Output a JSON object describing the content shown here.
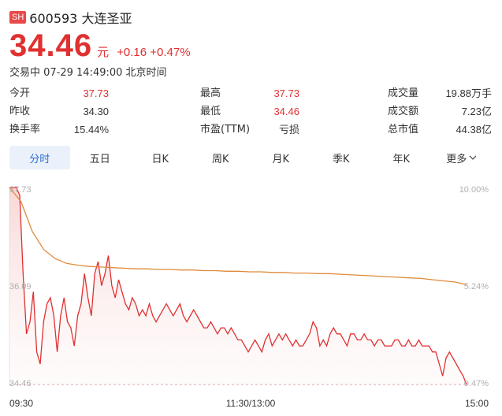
{
  "header": {
    "badge": "SH",
    "title": "600593 大连圣亚",
    "price": "34.46",
    "unit": "元",
    "change": "+0.16 +0.47%",
    "status": "交易中 07-29 14:49:00 北京时间"
  },
  "stats": {
    "open_label": "今开",
    "open": "37.73",
    "prev_close_label": "昨收",
    "prev_close": "34.30",
    "turnover_label": "换手率",
    "turnover": "15.44%",
    "high_label": "最高",
    "high": "37.73",
    "low_label": "最低",
    "low": "34.46",
    "pe_label": "市盈(TTM)",
    "pe": "亏损",
    "volume_label": "成交量",
    "volume": "19.88万手",
    "amount_label": "成交额",
    "amount": "7.23亿",
    "mktcap_label": "总市值",
    "mktcap": "44.38亿"
  },
  "tabs": [
    "分时",
    "五日",
    "日K",
    "周K",
    "月K",
    "季K",
    "年K",
    "更多"
  ],
  "colors": {
    "up": "#e03030",
    "avg": "#e08a3a",
    "tab_active": "#2c6fd1"
  },
  "chart_data": {
    "type": "line",
    "x_labels": [
      "09:30",
      "11:30/13:00",
      "15:00"
    ],
    "y_left_ticks": [
      "37.73",
      "36.09",
      "34.46"
    ],
    "y_right_ticks": [
      "10.00%",
      "5.24%",
      "0.47%"
    ],
    "ylim": [
      34.46,
      37.73
    ],
    "series": [
      {
        "role": "price",
        "values": [
          37.73,
          37.73,
          37.73,
          37.6,
          36.3,
          35.3,
          35.5,
          36.0,
          35.0,
          34.8,
          35.5,
          35.8,
          35.9,
          35.6,
          35.0,
          35.6,
          35.9,
          35.5,
          35.4,
          35.1,
          35.6,
          35.8,
          36.3,
          35.9,
          35.6,
          36.3,
          36.5,
          36.1,
          36.3,
          36.6,
          36.1,
          35.9,
          36.2,
          36.0,
          35.8,
          35.7,
          35.9,
          35.8,
          35.6,
          35.7,
          35.6,
          35.8,
          35.6,
          35.5,
          35.6,
          35.7,
          35.8,
          35.7,
          35.6,
          35.7,
          35.8,
          35.6,
          35.5,
          35.6,
          35.7,
          35.6,
          35.5,
          35.4,
          35.4,
          35.5,
          35.4,
          35.3,
          35.4,
          35.4,
          35.3,
          35.4,
          35.3,
          35.2,
          35.2,
          35.1,
          35.0,
          35.1,
          35.2,
          35.1,
          35.0,
          35.2,
          35.3,
          35.1,
          35.2,
          35.3,
          35.2,
          35.3,
          35.2,
          35.1,
          35.2,
          35.1,
          35.1,
          35.2,
          35.3,
          35.5,
          35.4,
          35.1,
          35.2,
          35.1,
          35.3,
          35.4,
          35.3,
          35.3,
          35.2,
          35.1,
          35.3,
          35.3,
          35.2,
          35.2,
          35.3,
          35.2,
          35.2,
          35.1,
          35.2,
          35.2,
          35.1,
          35.1,
          35.1,
          35.2,
          35.2,
          35.1,
          35.1,
          35.2,
          35.1,
          35.1,
          35.2,
          35.1,
          35.1,
          35.1,
          35.0,
          35.0,
          34.8,
          34.6,
          34.9,
          35.0,
          34.9,
          34.8,
          34.7,
          34.6,
          34.46
        ]
      },
      {
        "role": "average",
        "values": [
          37.73,
          37.5,
          37.0,
          36.7,
          36.55,
          36.47,
          36.44,
          36.42,
          36.41,
          36.4,
          36.39,
          36.38,
          36.38,
          36.37,
          36.37,
          36.36,
          36.36,
          36.35,
          36.35,
          36.34,
          36.34,
          36.33,
          36.33,
          36.32,
          36.32,
          36.31,
          36.31,
          36.3,
          36.3,
          36.29,
          36.28,
          36.27,
          36.26,
          36.25,
          36.24,
          36.23,
          36.22,
          36.2,
          36.18,
          36.16,
          36.12
        ]
      }
    ]
  }
}
